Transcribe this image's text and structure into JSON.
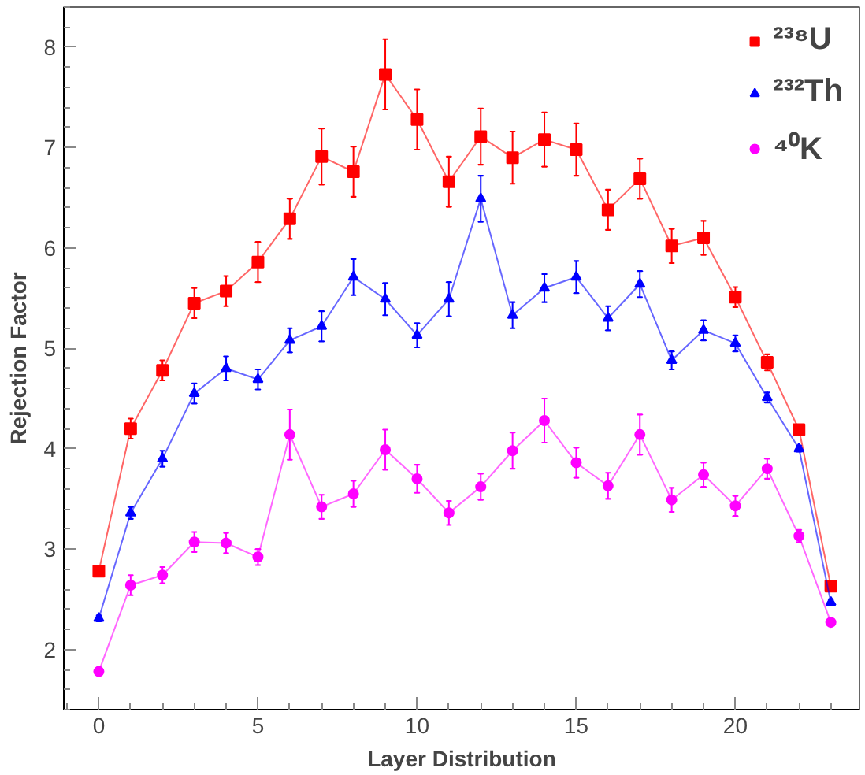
{
  "chart_data": {
    "type": "line",
    "xlabel": "Layer Distribution",
    "ylabel": "Rejection Factor",
    "x": [
      0,
      1,
      2,
      3,
      4,
      5,
      6,
      7,
      8,
      9,
      10,
      11,
      12,
      13,
      14,
      15,
      16,
      17,
      18,
      19,
      20,
      21,
      22,
      23
    ],
    "xlim": [
      -1.1,
      23.9
    ],
    "xticks": [
      0,
      5,
      10,
      15,
      20
    ],
    "ylim": [
      1.4,
      8.4
    ],
    "yticks": [
      2,
      3,
      4,
      5,
      6,
      7,
      8
    ],
    "grid": false,
    "legend": "top right",
    "series": [
      {
        "name": "²³⁸U",
        "color": "#ff0000",
        "marker": "square",
        "values": [
          2.78,
          4.2,
          4.78,
          5.45,
          5.57,
          5.86,
          6.29,
          6.91,
          6.76,
          7.73,
          7.28,
          6.66,
          7.11,
          6.9,
          7.08,
          6.98,
          6.38,
          6.69,
          6.02,
          6.1,
          5.51,
          4.86,
          4.19,
          2.63
        ],
        "errors": [
          0.05,
          0.1,
          0.1,
          0.15,
          0.15,
          0.2,
          0.2,
          0.28,
          0.25,
          0.35,
          0.3,
          0.25,
          0.28,
          0.26,
          0.27,
          0.26,
          0.2,
          0.2,
          0.17,
          0.17,
          0.1,
          0.08,
          0.05,
          0.03
        ]
      },
      {
        "name": "²³²Th",
        "color": "#0000ff",
        "marker": "triangle",
        "values": [
          2.31,
          3.36,
          3.9,
          4.55,
          4.8,
          4.69,
          5.08,
          5.22,
          5.71,
          5.49,
          5.13,
          5.49,
          6.49,
          5.33,
          5.6,
          5.71,
          5.3,
          5.64,
          4.88,
          5.18,
          5.05,
          4.51,
          4.0,
          2.47
        ],
        "errors": [
          0.03,
          0.06,
          0.08,
          0.1,
          0.12,
          0.1,
          0.12,
          0.15,
          0.18,
          0.16,
          0.12,
          0.17,
          0.23,
          0.13,
          0.14,
          0.16,
          0.12,
          0.13,
          0.09,
          0.1,
          0.08,
          0.05,
          0.03,
          0.03
        ]
      },
      {
        "name": "⁴⁰K",
        "color": "#ff00ff",
        "marker": "circle",
        "values": [
          1.78,
          2.64,
          2.74,
          3.07,
          3.06,
          2.92,
          4.14,
          3.42,
          3.55,
          3.99,
          3.7,
          3.36,
          3.62,
          3.98,
          4.28,
          3.86,
          3.63,
          4.14,
          3.49,
          3.74,
          3.43,
          3.8,
          3.13,
          2.27
        ],
        "errors": [
          0.03,
          0.1,
          0.08,
          0.1,
          0.1,
          0.08,
          0.25,
          0.12,
          0.13,
          0.2,
          0.14,
          0.12,
          0.13,
          0.18,
          0.22,
          0.15,
          0.13,
          0.2,
          0.12,
          0.12,
          0.1,
          0.1,
          0.06,
          0.03
        ]
      }
    ]
  }
}
